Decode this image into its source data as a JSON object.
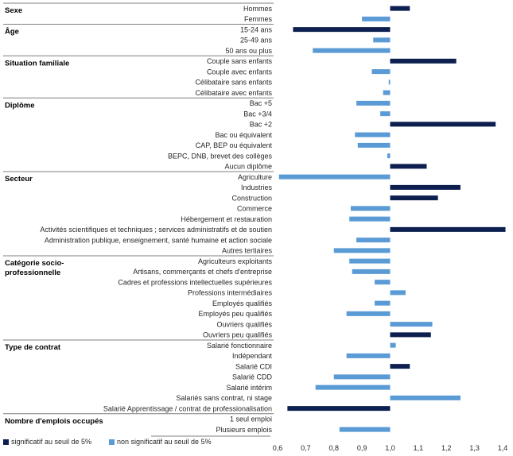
{
  "chart_data": {
    "type": "bar",
    "orientation": "horizontal",
    "title": "",
    "xlabel": "",
    "ylabel": "",
    "xlim": [
      0.6,
      1.4
    ],
    "reference_value": 1.0,
    "xticks": [
      "0,6",
      "0,7",
      "0,8",
      "0,9",
      "1,0",
      "1,1",
      "1,2",
      "1,3",
      "1,4"
    ],
    "grid": false,
    "legend_position": "bottom-left",
    "colors": {
      "significant": "#0d1f4f",
      "not_significant": "#5b9bd5",
      "separator": "#7f7f7f",
      "axis": "#595959"
    },
    "legend": [
      {
        "key": "sig",
        "label": "significatif au seuil de 5%"
      },
      {
        "key": "ns",
        "label": "non significatif au seuil de 5%"
      }
    ],
    "groups": [
      {
        "name": "Sexe",
        "items": [
          {
            "label": "Hommes",
            "value": 1.07,
            "significant": true
          },
          {
            "label": "Femmes",
            "value": 0.9,
            "significant": false
          }
        ]
      },
      {
        "name": "Âge",
        "items": [
          {
            "label": "15-24 ans",
            "value": 0.655,
            "significant": true
          },
          {
            "label": "25-49 ans",
            "value": 0.94,
            "significant": false
          },
          {
            "label": "50 ans ou plus",
            "value": 0.725,
            "significant": false
          }
        ]
      },
      {
        "name": "Situation familiale",
        "items": [
          {
            "label": "Couple sans enfants",
            "value": 1.235,
            "significant": true
          },
          {
            "label": "Couple avec enfants",
            "value": 0.935,
            "significant": false
          },
          {
            "label": "Célibataire sans enfants",
            "value": 0.995,
            "significant": false
          },
          {
            "label": "Célibataire avec enfants",
            "value": 0.975,
            "significant": false
          }
        ]
      },
      {
        "name": "Diplôme",
        "items": [
          {
            "label": "Bac +5",
            "value": 0.88,
            "significant": false
          },
          {
            "label": "Bac +3/4",
            "value": 0.965,
            "significant": false
          },
          {
            "label": "Bac +2",
            "value": 1.375,
            "significant": true
          },
          {
            "label": "Bac ou  équivalent",
            "value": 0.875,
            "significant": false
          },
          {
            "label": "CAP, BEP ou équivalent",
            "value": 0.885,
            "significant": false
          },
          {
            "label": "BEPC, DNB, brevet des collèges",
            "value": 0.99,
            "significant": false
          },
          {
            "label": "Aucun diplôme",
            "value": 1.13,
            "significant": true
          }
        ]
      },
      {
        "name": "Secteur",
        "items": [
          {
            "label": "Agriculture",
            "value": 0.605,
            "significant": false
          },
          {
            "label": "Industries",
            "value": 1.25,
            "significant": true
          },
          {
            "label": "Construction",
            "value": 1.17,
            "significant": true
          },
          {
            "label": "Commerce",
            "value": 0.86,
            "significant": false
          },
          {
            "label": "Hébergement et restauration",
            "value": 0.855,
            "significant": false
          },
          {
            "label": "Activités scientifiques et techniques ; services administratifs et de soutien",
            "value": 1.41,
            "significant": true
          },
          {
            "label": "Administration publique, enseignement, santé humaine et action sociale",
            "value": 0.88,
            "significant": false
          },
          {
            "label": "Autres tertiaires",
            "value": 0.8,
            "significant": false
          }
        ]
      },
      {
        "name": "Catégorie socio-professionnelle",
        "name_lines": [
          "Catégorie socio-",
          "professionnelle"
        ],
        "items": [
          {
            "label": "Agriculteurs exploitants",
            "value": 0.855,
            "significant": false
          },
          {
            "label": "Artisans, commerçants et chefs d'entreprise",
            "value": 0.865,
            "significant": false
          },
          {
            "label": "Cadres et professions intellectuelles supérieures",
            "value": 0.945,
            "significant": false
          },
          {
            "label": "Professions intermédiaires",
            "value": 1.055,
            "significant": false
          },
          {
            "label": "Employés qualifiés",
            "value": 0.945,
            "significant": false
          },
          {
            "label": "Employés peu qualifiés",
            "value": 0.845,
            "significant": false
          },
          {
            "label": "Ouvriers qualifiés",
            "value": 1.15,
            "significant": false
          },
          {
            "label": "Ouvriers peu qualifiés",
            "value": 1.145,
            "significant": true
          }
        ]
      },
      {
        "name": "Type de contrat",
        "items": [
          {
            "label": "Salarié fonctionnaire",
            "value": 1.02,
            "significant": false
          },
          {
            "label": "Indépendant",
            "value": 0.845,
            "significant": false
          },
          {
            "label": "Salarié CDI",
            "value": 1.07,
            "significant": true
          },
          {
            "label": "Salarié CDD",
            "value": 0.8,
            "significant": false
          },
          {
            "label": "Salarié intérim",
            "value": 0.735,
            "significant": false
          },
          {
            "label": "Salariés sans contrat, ni stage",
            "value": 1.25,
            "significant": false
          },
          {
            "label": "Salarié Apprentissage / contrat de professionalisation",
            "value": 0.635,
            "significant": true
          }
        ]
      },
      {
        "name": "Nombre d'emplois occupés",
        "items": [
          {
            "label": "1 seul emploi",
            "value": 1.0,
            "significant": false
          },
          {
            "label": "Plusieurs emplois",
            "value": 0.82,
            "significant": false
          }
        ]
      }
    ]
  }
}
